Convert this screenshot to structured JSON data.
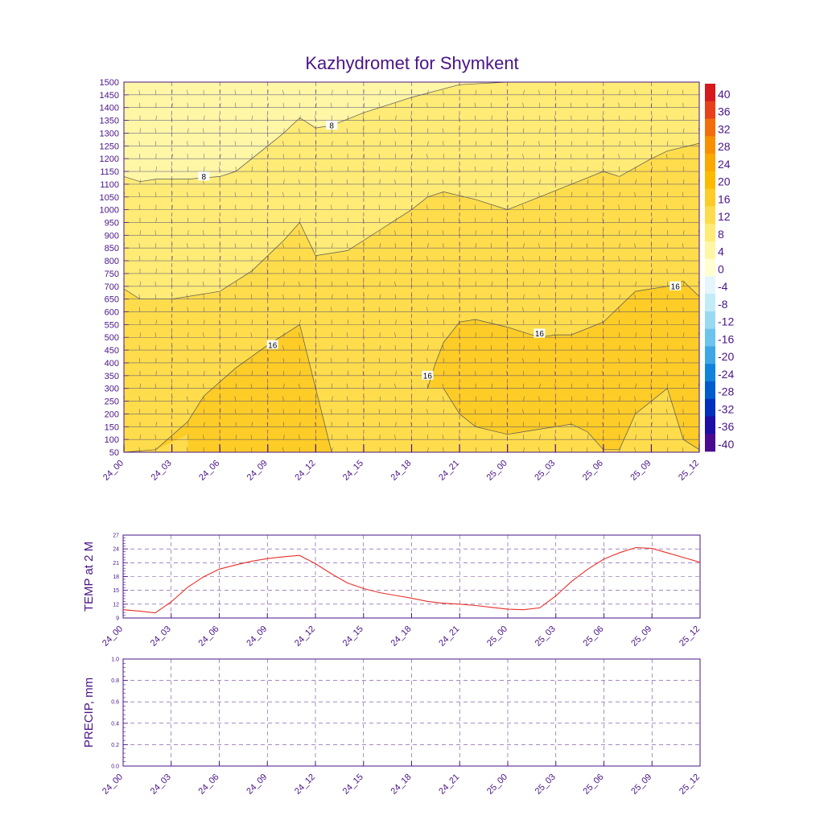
{
  "page_title": "Kazhydromet for Shymkent",
  "chart_data": [
    {
      "id": "profile",
      "type": "heatmap",
      "title": "Kazhydromet for Shymkent",
      "xlabel": "",
      "ylabel": "",
      "x_ticks": [
        "24_00",
        "24_03",
        "24_06",
        "24_09",
        "24_12",
        "24_15",
        "24_18",
        "24_21",
        "25_00",
        "25_03",
        "25_06",
        "25_09",
        "25_12"
      ],
      "x_range": [
        0,
        36
      ],
      "y_range": [
        50,
        1500
      ],
      "y_ticks": [
        50,
        100,
        150,
        200,
        250,
        300,
        350,
        400,
        450,
        500,
        550,
        600,
        650,
        700,
        750,
        800,
        850,
        900,
        950,
        1000,
        1050,
        1100,
        1150,
        1200,
        1250,
        1300,
        1350,
        1400,
        1450,
        1500
      ],
      "colorbar": {
        "labels": [
          "40",
          "36",
          "32",
          "28",
          "24",
          "20",
          "16",
          "12",
          "8",
          "4",
          "0",
          "-4",
          "-8",
          "-12",
          "-16",
          "-20",
          "-24",
          "-28",
          "-32",
          "-36",
          "-40"
        ],
        "colors": [
          "#d7191c",
          "#e8401a",
          "#f46d0c",
          "#f88f00",
          "#fba800",
          "#fdbb00",
          "#fdcc26",
          "#fedc4b",
          "#ffeb75",
          "#fff6a6",
          "#ffffd0",
          "#e4f6fb",
          "#c2ebf7",
          "#9ad9f2",
          "#6cc3ed",
          "#3ea6e6",
          "#1083dc",
          "#005ccd",
          "#0030bd",
          "#1f0da8",
          "#4a0a90"
        ]
      },
      "contours": [
        {
          "value": "8",
          "x": [
            0,
            1,
            2,
            4,
            6,
            7,
            8,
            9,
            10,
            10.5,
            11,
            12,
            13,
            15,
            18,
            21,
            24,
            27,
            30,
            33,
            36
          ],
          "y": [
            1130,
            1110,
            1120,
            1120,
            1130,
            1150,
            1200,
            1250,
            1300,
            1330,
            1360,
            1320,
            1330,
            1380,
            1440,
            1490,
            1500,
            1500,
            1500,
            1500,
            1500
          ]
        },
        {
          "value": "12",
          "x": [
            0,
            1,
            3,
            6,
            8,
            10,
            11,
            12,
            14,
            16,
            18,
            19,
            20,
            22,
            24,
            26,
            28,
            30,
            31,
            33,
            34,
            36
          ],
          "y": [
            690,
            650,
            650,
            680,
            760,
            880,
            950,
            820,
            840,
            920,
            1000,
            1050,
            1070,
            1040,
            1000,
            1050,
            1100,
            1150,
            1130,
            1200,
            1230,
            1260
          ]
        },
        {
          "value": "16",
          "x": [
            0,
            2,
            4,
            5,
            7,
            9,
            11,
            12,
            13
          ],
          "y": [
            50,
            60,
            170,
            270,
            380,
            470,
            550,
            300,
            50
          ]
        },
        {
          "value": "16",
          "x": [
            19,
            19.5,
            20,
            21,
            22,
            24,
            26,
            27,
            28,
            30,
            32,
            34,
            35,
            36
          ],
          "y": [
            300,
            400,
            480,
            560,
            570,
            540,
            500,
            510,
            510,
            560,
            680,
            700,
            720,
            660
          ]
        },
        {
          "value": "16",
          "x": [
            20,
            21,
            22,
            24,
            26,
            27,
            28,
            29,
            30,
            31,
            32,
            34,
            35,
            36
          ],
          "y": [
            300,
            200,
            150,
            120,
            140,
            150,
            160,
            130,
            60,
            60,
            200,
            300,
            100,
            60
          ]
        }
      ],
      "contour_labels": [
        {
          "text": "8",
          "x": 5,
          "y": 1130
        },
        {
          "text": "8",
          "x": 13,
          "y": 1330
        },
        {
          "text": "16",
          "x": 9.3,
          "y": 470
        },
        {
          "text": "16",
          "x": 19,
          "y": 350
        },
        {
          "text": "16",
          "x": 26,
          "y": 515
        },
        {
          "text": "16",
          "x": 34.5,
          "y": 700
        }
      ]
    },
    {
      "id": "temp",
      "type": "line",
      "title": "",
      "xlabel": "",
      "ylabel": "TEMP at 2 M",
      "x_ticks": [
        "24_00",
        "24_03",
        "24_06",
        "24_09",
        "24_12",
        "24_15",
        "24_18",
        "24_21",
        "25_00",
        "25_03",
        "25_06",
        "25_09",
        "25_12"
      ],
      "x_range": [
        0,
        36
      ],
      "ylim": [
        9,
        27
      ],
      "y_ticks": [
        9,
        12,
        15,
        18,
        21,
        24,
        27
      ],
      "series": [
        {
          "name": "TEMP at 2 M",
          "color": "#e8302a",
          "x": [
            0,
            1,
            2,
            3,
            4,
            5,
            6,
            7,
            8,
            9,
            10,
            11,
            12,
            13,
            14,
            15,
            16,
            17,
            18,
            19,
            20,
            21,
            22,
            23,
            24,
            25,
            26,
            27,
            28,
            29,
            30,
            31,
            32,
            33,
            34,
            35,
            36
          ],
          "values": [
            10.8,
            10.5,
            10.1,
            12.5,
            15.6,
            17.9,
            19.6,
            20.5,
            21.3,
            21.9,
            22.3,
            22.6,
            20.8,
            18.6,
            16.6,
            15.4,
            14.5,
            13.9,
            13.3,
            12.6,
            12.2,
            12.0,
            11.7,
            11.3,
            10.9,
            10.8,
            11.2,
            13.8,
            17.0,
            19.6,
            21.8,
            23.2,
            24.3,
            24.1,
            23.1,
            22.1,
            21.1
          ]
        }
      ]
    },
    {
      "id": "precip",
      "type": "line",
      "title": "",
      "xlabel": "",
      "ylabel": "PRECIP, mm",
      "x_ticks": [
        "24_00",
        "24_03",
        "24_06",
        "24_09",
        "24_12",
        "24_15",
        "24_18",
        "24_21",
        "25_00",
        "25_03",
        "25_06",
        "25_09",
        "25_12"
      ],
      "x_range": [
        0,
        36
      ],
      "ylim": [
        0,
        1
      ],
      "y_ticks": [
        "0.0",
        "0.2",
        "0.4",
        "0.6",
        "0.8",
        "1.0"
      ],
      "series": []
    }
  ]
}
